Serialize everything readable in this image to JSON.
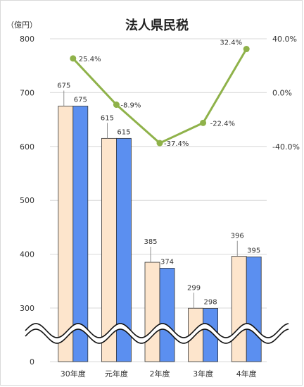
{
  "chart_data": {
    "type": "bar",
    "title": "法人県民税",
    "unit_label": "（億円）",
    "categories": [
      "30年度",
      "元年度",
      "2年度",
      "3年度",
      "4年度"
    ],
    "series": [
      {
        "values": [
          675,
          615,
          385,
          299,
          396
        ],
        "color": "#fde5cc",
        "label_values": [
          "675",
          "615",
          "385",
          "299",
          "396"
        ]
      },
      {
        "values": [
          675,
          615,
          374,
          298,
          395
        ],
        "color": "#5b8ff0",
        "label_values": [
          "675",
          "615",
          "374",
          "298",
          "395"
        ]
      }
    ],
    "line_series": {
      "values": [
        25.4,
        -8.9,
        -37.4,
        -22.4,
        32.4
      ],
      "labels": [
        "25.4%",
        "-8.9%",
        "-37.4%",
        "-22.4%",
        "32.4%"
      ],
      "color": "#8fb24a"
    },
    "left_axis": {
      "ticks": [
        0,
        300,
        400,
        500,
        600,
        700,
        800
      ],
      "tick_labels": [
        "0",
        "300",
        "400",
        "500",
        "600",
        "700",
        "800"
      ],
      "ylim": [
        0,
        800
      ],
      "axis_break": true
    },
    "right_axis": {
      "ticks": [
        40,
        0,
        -40
      ],
      "tick_labels": [
        "40.0%",
        "0.0%",
        "-40.0%"
      ]
    },
    "grid": true
  }
}
